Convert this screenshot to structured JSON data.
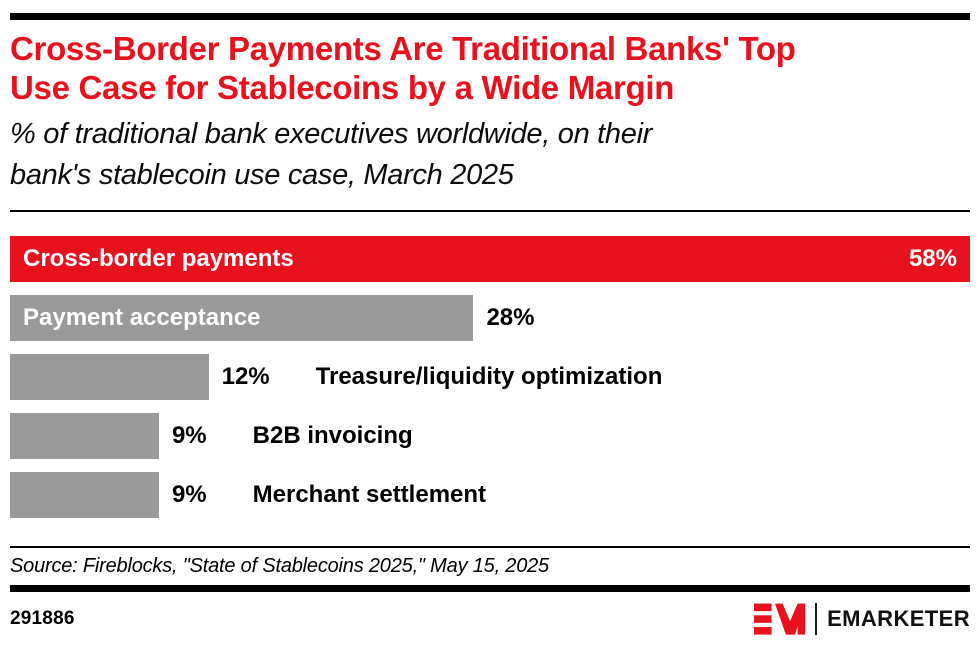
{
  "theme": {
    "accent_red": "#E8121E",
    "bar_gray": "#9A9A9A"
  },
  "header": {
    "title_lines": [
      "Cross-Border Payments Are Traditional Banks' Top",
      "Use Case for Stablecoins by a Wide Margin"
    ],
    "subtitle_lines": [
      "% of traditional bank executives worldwide, on their",
      "bank's stablecoin use case, March 2025"
    ]
  },
  "chart_data": {
    "type": "bar",
    "orientation": "horizontal",
    "title": "Cross-Border Payments Are Traditional Banks' Top Use Case for Stablecoins by a Wide Margin",
    "subtitle": "% of traditional bank executives worldwide, on their bank's stablecoin use case, March 2025",
    "unit": "%",
    "xlim": [
      0,
      58
    ],
    "grid": false,
    "legend": false,
    "categories": [
      "Cross-border payments",
      "Payment acceptance",
      "Treasure/liquidity optimization",
      "B2B invoicing",
      "Merchant settlement"
    ],
    "values": [
      58,
      28,
      12,
      9,
      9
    ],
    "max_value_for_scale": 58,
    "bars": [
      {
        "label": "Cross-border payments",
        "value": 58,
        "display": "58%",
        "color": "red",
        "label_position": "inside",
        "value_position": "inside"
      },
      {
        "label": "Payment acceptance",
        "value": 28,
        "display": "28%",
        "color": "gray",
        "label_position": "inside",
        "value_position": "outside"
      },
      {
        "label": "Treasure/liquidity optimization",
        "value": 12,
        "display": "12%",
        "color": "gray",
        "label_position": "outside",
        "value_position": "outside"
      },
      {
        "label": "B2B invoicing",
        "value": 9,
        "display": "9%",
        "color": "gray",
        "label_position": "outside",
        "value_position": "outside"
      },
      {
        "label": "Merchant settlement",
        "value": 9,
        "display": "9%",
        "color": "gray",
        "label_position": "outside",
        "value_position": "outside"
      }
    ]
  },
  "footer": {
    "source": "Source: Fireblocks, \"State of Stablecoins 2025,\" May 15, 2025",
    "chart_id": "291886",
    "brand": "EMARKETER",
    "logo_mark": "EM-logo-mark"
  }
}
